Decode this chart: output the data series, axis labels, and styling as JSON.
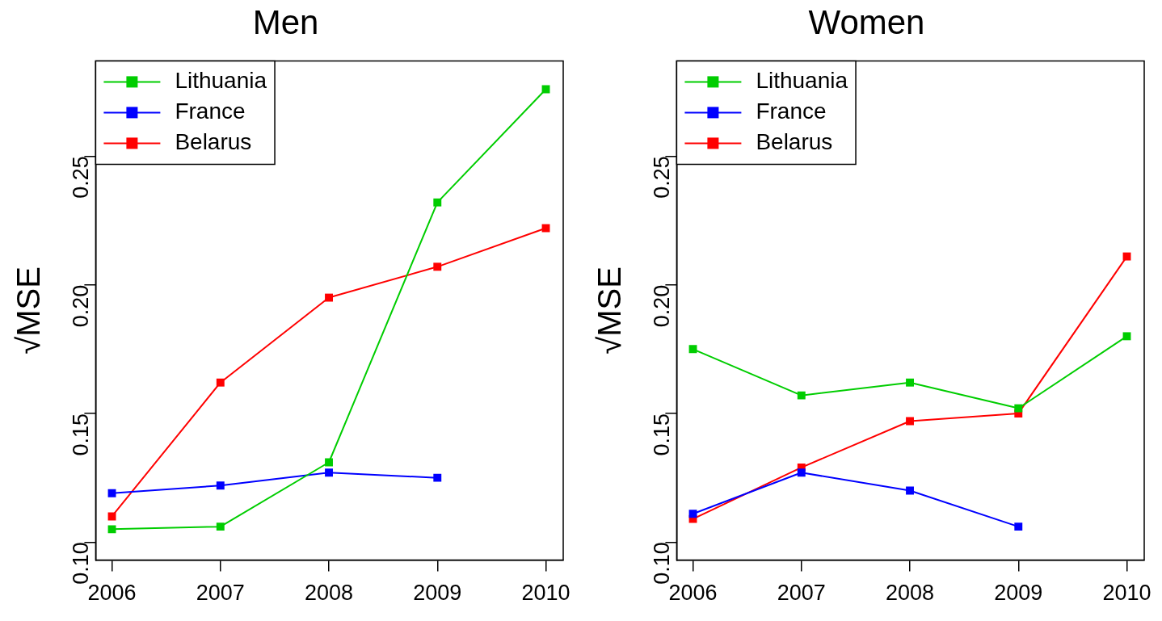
{
  "chart_data": [
    {
      "type": "line",
      "title": "Men",
      "ylabel": "√MSE",
      "x": [
        2006,
        2007,
        2008,
        2009,
        2010
      ],
      "xlim": [
        2005.85,
        2010.16
      ],
      "xticks": [
        2006,
        2007,
        2008,
        2009,
        2010
      ],
      "ylim": [
        0.093,
        0.287
      ],
      "yticks": [
        {
          "value": 0.1,
          "label": "0.10"
        },
        {
          "value": 0.15,
          "label": "0.15"
        },
        {
          "value": 0.2,
          "label": "0.20"
        },
        {
          "value": 0.25,
          "label": "0.25"
        }
      ],
      "grid": false,
      "legend": "top left",
      "marker": "square",
      "line_style": "solid",
      "series": [
        {
          "name": "Lithuania",
          "color": "#00cd00",
          "values": [
            0.105,
            0.106,
            0.131,
            0.232,
            0.276
          ]
        },
        {
          "name": "France",
          "color": "#0000ff",
          "values": [
            0.119,
            0.122,
            0.127,
            0.125,
            null
          ]
        },
        {
          "name": "Belarus",
          "color": "#ff0000",
          "values": [
            0.11,
            0.162,
            0.195,
            0.207,
            0.222
          ]
        }
      ]
    },
    {
      "type": "line",
      "title": "Women",
      "ylabel": "√MSE",
      "x": [
        2006,
        2007,
        2008,
        2009,
        2010
      ],
      "xlim": [
        2005.85,
        2010.16
      ],
      "xticks": [
        2006,
        2007,
        2008,
        2009,
        2010
      ],
      "ylim": [
        0.093,
        0.287
      ],
      "yticks": [
        {
          "value": 0.1,
          "label": "0.10"
        },
        {
          "value": 0.15,
          "label": "0.15"
        },
        {
          "value": 0.2,
          "label": "0.20"
        },
        {
          "value": 0.25,
          "label": "0.25"
        }
      ],
      "grid": false,
      "legend": "top left",
      "marker": "square",
      "line_style": "solid",
      "series": [
        {
          "name": "Lithuania",
          "color": "#00cd00",
          "values": [
            0.175,
            0.157,
            0.162,
            0.152,
            0.18
          ]
        },
        {
          "name": "France",
          "color": "#0000ff",
          "values": [
            0.111,
            0.127,
            0.12,
            0.106,
            null
          ]
        },
        {
          "name": "Belarus",
          "color": "#ff0000",
          "values": [
            0.109,
            0.129,
            0.147,
            0.15,
            0.211
          ]
        }
      ]
    }
  ]
}
